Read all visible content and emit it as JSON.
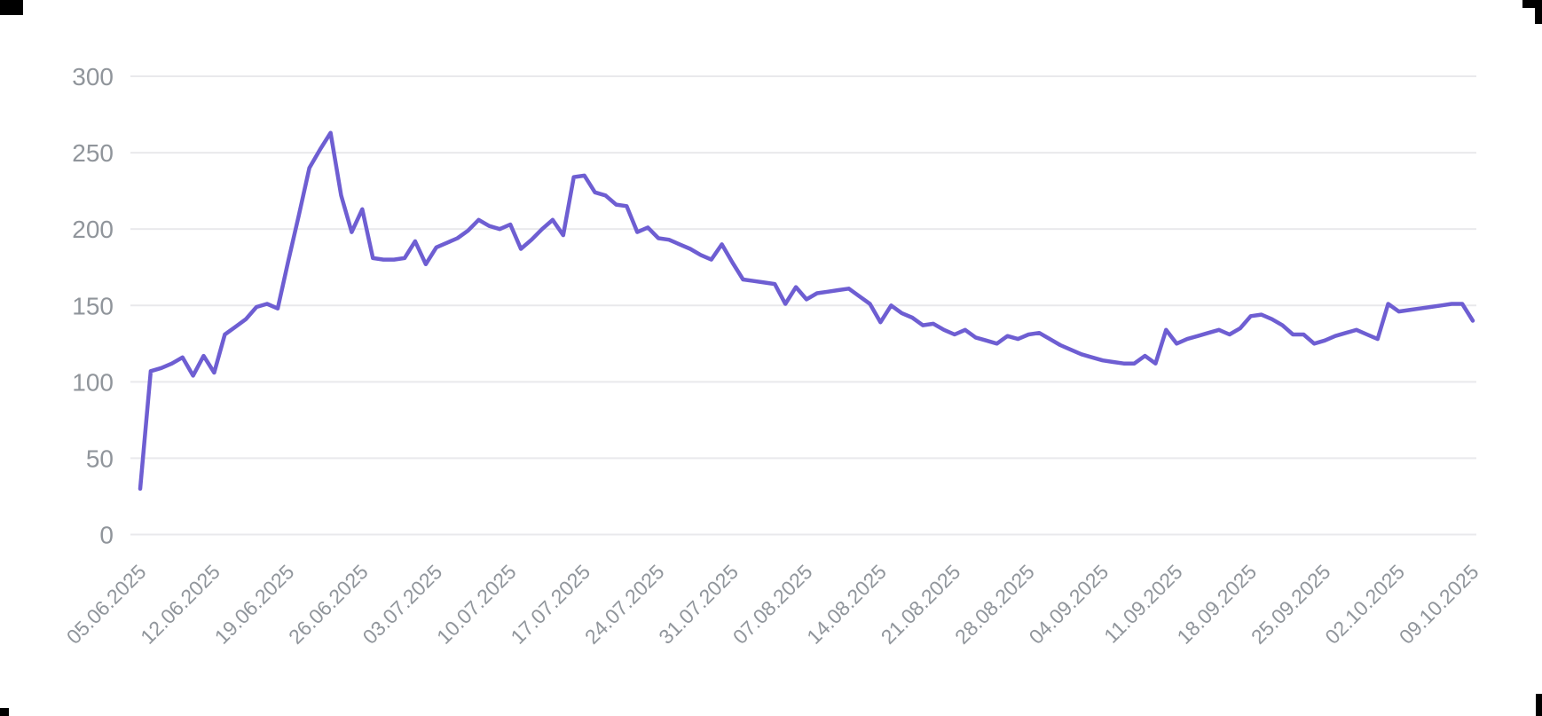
{
  "page": {
    "background_color": "#ffffff",
    "corner_artifact_color": "#000000"
  },
  "chart_data": {
    "type": "line",
    "title": "",
    "xlabel": "",
    "ylabel": "",
    "legend": false,
    "grid": true,
    "x_interval": "daily",
    "x_start_date": "05.06.2025",
    "x_end_date": "09.10.2025",
    "x_tick_every_n_points": 7,
    "x_tick_labels": [
      "05.06.2025",
      "12.06.2025",
      "19.06.2025",
      "26.06.2025",
      "03.07.2025",
      "10.07.2025",
      "17.07.2025",
      "24.07.2025",
      "31.07.2025",
      "07.08.2025",
      "14.08.2025",
      "21.08.2025",
      "28.08.2025",
      "04.09.2025",
      "11.09.2025",
      "18.09.2025",
      "25.09.2025",
      "02.10.2025",
      "09.10.2025"
    ],
    "y_ticks": [
      0,
      50,
      100,
      150,
      200,
      250,
      300
    ],
    "ylim": [
      0,
      300
    ],
    "line_color": "#6e5ed2",
    "grid_color": "#e9e9ec",
    "axis_text_color": "#90959b",
    "values": [
      30,
      107,
      109,
      112,
      116,
      104,
      117,
      106,
      131,
      136,
      141,
      149,
      151,
      148,
      179,
      209,
      240,
      252,
      263,
      222,
      198,
      213,
      181,
      180,
      180,
      181,
      192,
      177,
      188,
      191,
      194,
      199,
      206,
      202,
      200,
      203,
      187,
      193,
      200,
      206,
      196,
      234,
      235,
      224,
      222,
      216,
      215,
      198,
      201,
      194,
      193,
      190,
      187,
      183,
      180,
      190,
      178,
      167,
      166,
      165,
      164,
      151,
      162,
      154,
      158,
      159,
      160,
      161,
      156,
      151,
      139,
      150,
      145,
      142,
      137,
      138,
      134,
      131,
      134,
      129,
      127,
      125,
      130,
      128,
      131,
      132,
      128,
      124,
      121,
      118,
      116,
      114,
      113,
      112,
      112,
      117,
      112,
      134,
      125,
      128,
      130,
      132,
      134,
      131,
      135,
      143,
      144,
      141,
      137,
      131,
      131,
      125,
      127,
      130,
      132,
      134,
      131,
      128,
      151,
      146,
      147,
      148,
      149,
      150,
      151,
      151,
      140
    ]
  }
}
